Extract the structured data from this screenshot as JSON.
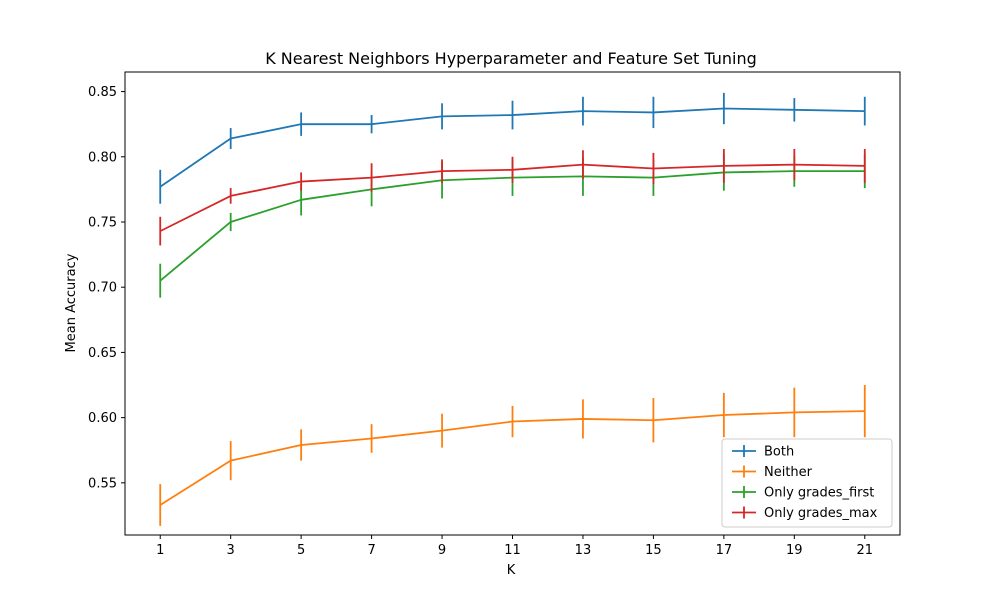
{
  "chart_data": {
    "type": "line",
    "title": "K Nearest Neighbors Hyperparameter and Feature Set Tuning",
    "xlabel": "K",
    "ylabel": "Mean Accuracy",
    "x": [
      1,
      3,
      5,
      7,
      9,
      11,
      13,
      15,
      17,
      19,
      21
    ],
    "x_ticks": [
      "1",
      "3",
      "5",
      "7",
      "9",
      "11",
      "13",
      "15",
      "17",
      "19",
      "21"
    ],
    "xlim": [
      0,
      22
    ],
    "ylim": [
      0.51,
      0.865
    ],
    "y_ticks": [
      "0.55",
      "0.60",
      "0.65",
      "0.70",
      "0.75",
      "0.80",
      "0.85"
    ],
    "grid": false,
    "error_bars": true,
    "legend_position": "lower-right",
    "series": [
      {
        "name": "Both",
        "color": "#1f77b4",
        "values": [
          0.777,
          0.814,
          0.825,
          0.825,
          0.831,
          0.832,
          0.835,
          0.834,
          0.837,
          0.836,
          0.835
        ],
        "errors": [
          0.013,
          0.008,
          0.009,
          0.007,
          0.01,
          0.011,
          0.011,
          0.012,
          0.012,
          0.009,
          0.011
        ]
      },
      {
        "name": "Neither",
        "color": "#ff7f0e",
        "values": [
          0.533,
          0.567,
          0.579,
          0.584,
          0.59,
          0.597,
          0.599,
          0.598,
          0.602,
          0.604,
          0.605
        ],
        "errors": [
          0.016,
          0.015,
          0.012,
          0.011,
          0.013,
          0.012,
          0.015,
          0.017,
          0.017,
          0.019,
          0.02
        ]
      },
      {
        "name": "Only grades_first",
        "color": "#2ca02c",
        "values": [
          0.705,
          0.75,
          0.767,
          0.775,
          0.782,
          0.784,
          0.785,
          0.784,
          0.788,
          0.789,
          0.789
        ],
        "errors": [
          0.013,
          0.007,
          0.012,
          0.013,
          0.014,
          0.014,
          0.015,
          0.014,
          0.014,
          0.012,
          0.013
        ]
      },
      {
        "name": "Only grades_max",
        "color": "#d62728",
        "values": [
          0.743,
          0.77,
          0.781,
          0.784,
          0.789,
          0.79,
          0.794,
          0.791,
          0.793,
          0.794,
          0.793
        ],
        "errors": [
          0.011,
          0.006,
          0.007,
          0.011,
          0.009,
          0.01,
          0.011,
          0.012,
          0.013,
          0.012,
          0.013
        ]
      }
    ]
  }
}
